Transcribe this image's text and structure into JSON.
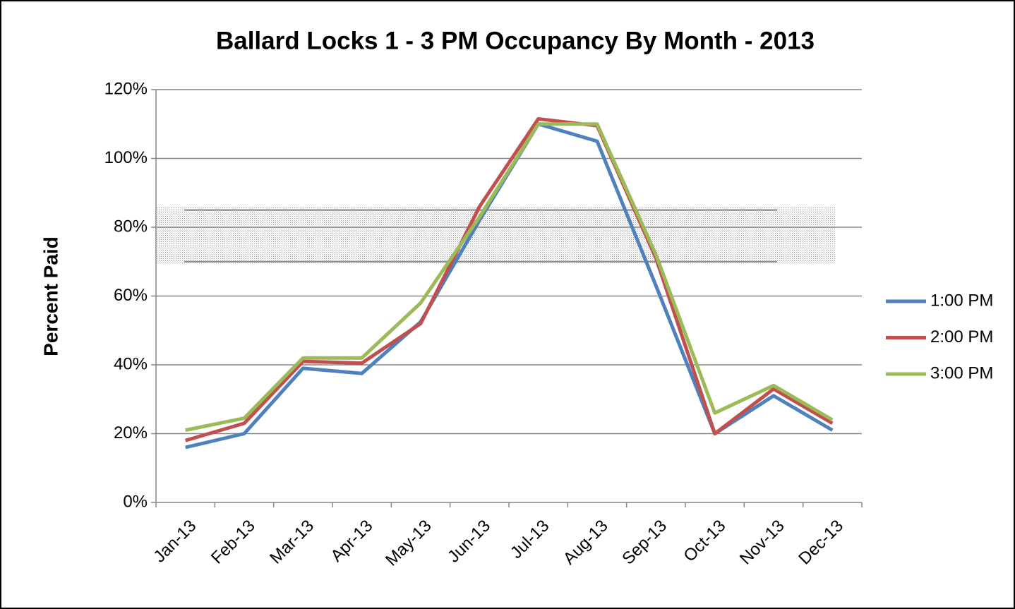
{
  "chart_data": {
    "type": "line",
    "title": "Ballard Locks 1 - 3 PM Occupancy By Month - 2013",
    "y_label": "Percent Paid",
    "categories": [
      "Jan-13",
      "Feb-13",
      "Mar-13",
      "Apr-13",
      "May-13",
      "Jun-13",
      "Jul-13",
      "Aug-13",
      "Sep-13",
      "Oct-13",
      "Nov-13",
      "Dec-13"
    ],
    "series": [
      {
        "name": "1:00 PM",
        "color": "#4f81bd",
        "values": [
          16,
          20,
          39,
          37.5,
          52.5,
          82,
          110,
          105,
          63,
          20,
          31,
          21
        ]
      },
      {
        "name": "2:00 PM",
        "color": "#c0504d",
        "values": [
          18,
          23,
          41,
          40.5,
          52,
          86,
          111.5,
          109.5,
          71,
          20,
          33,
          23
        ]
      },
      {
        "name": "3:00 PM",
        "color": "#9bbb59",
        "values": [
          21,
          24.5,
          42,
          42,
          58,
          83,
          110,
          110,
          72,
          26,
          34,
          24
        ]
      }
    ],
    "shaded_range": [
      70,
      85
    ],
    "ylim": [
      0,
      120
    ],
    "yticks": [
      {
        "value": 0,
        "label": "0%"
      },
      {
        "value": 20,
        "label": "20%"
      },
      {
        "value": 40,
        "label": "40%"
      },
      {
        "value": 60,
        "label": "60%"
      },
      {
        "value": 80,
        "label": "80%"
      },
      {
        "value": 100,
        "label": "100%"
      },
      {
        "value": 120,
        "label": "120%"
      }
    ],
    "grid": true,
    "legend": "right"
  }
}
